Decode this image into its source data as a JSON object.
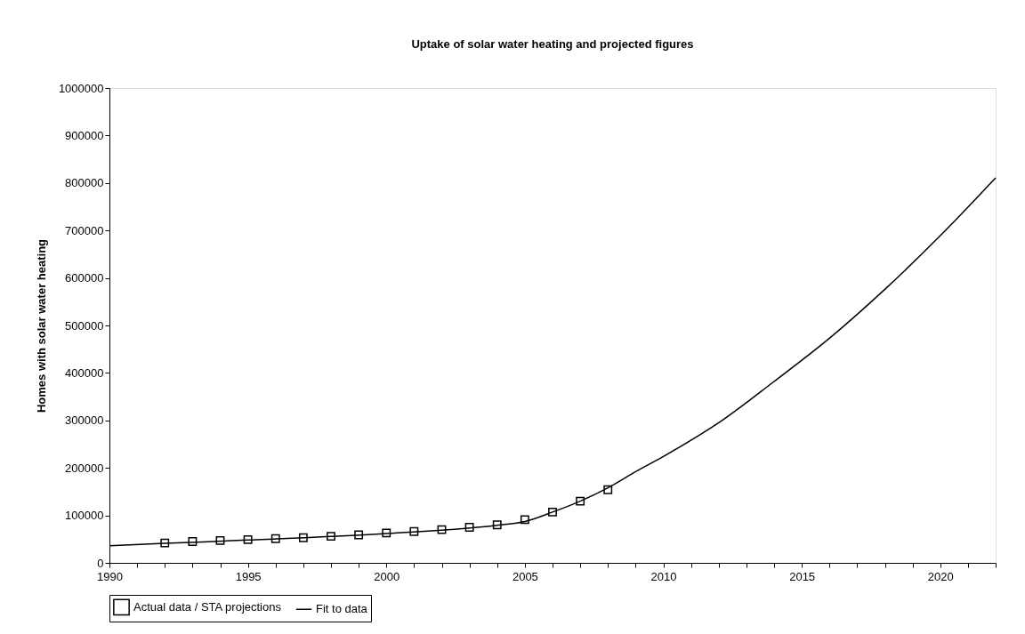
{
  "chart_data": {
    "type": "line",
    "title": "Uptake of solar water heating and projected figures",
    "ylabel": "Homes with solar water heating",
    "xlim": [
      1990,
      2022
    ],
    "ylim": [
      0,
      1000000
    ],
    "xticks": [
      1990,
      {
        "value": 1991,
        "label": null
      },
      {
        "value": 1992,
        "label": null
      },
      {
        "value": 1993,
        "label": null
      },
      {
        "value": 1994,
        "label": null
      },
      1995,
      {
        "value": 1996,
        "label": null
      },
      {
        "value": 1997,
        "label": null
      },
      {
        "value": 1998,
        "label": null
      },
      {
        "value": 1999,
        "label": null
      },
      2000,
      {
        "value": 2001,
        "label": null
      },
      {
        "value": 2002,
        "label": null
      },
      {
        "value": 2003,
        "label": null
      },
      {
        "value": 2004,
        "label": null
      },
      2005,
      {
        "value": 2006,
        "label": null
      },
      {
        "value": 2007,
        "label": null
      },
      {
        "value": 2008,
        "label": null
      },
      {
        "value": 2009,
        "label": null
      },
      2010,
      {
        "value": 2011,
        "label": null
      },
      {
        "value": 2012,
        "label": null
      },
      {
        "value": 2013,
        "label": null
      },
      {
        "value": 2014,
        "label": null
      },
      2015,
      {
        "value": 2016,
        "label": null
      },
      {
        "value": 2017,
        "label": null
      },
      {
        "value": 2018,
        "label": null
      },
      {
        "value": 2019,
        "label": null
      },
      2020,
      {
        "value": 2021,
        "label": null
      },
      {
        "value": 2022,
        "label": null
      }
    ],
    "yticks": [
      0,
      100000,
      200000,
      300000,
      400000,
      500000,
      600000,
      700000,
      800000,
      900000,
      1000000
    ],
    "grid": false,
    "legend": "bottom",
    "series": [
      {
        "name": "Actual data / STA projections",
        "type": "scatter",
        "marker": "square",
        "color": "#000000",
        "x": [
          1992,
          1993,
          1994,
          1995,
          1996,
          1997,
          1998,
          1999,
          2000,
          2001,
          2002,
          2003,
          2004,
          2005,
          2006,
          2007,
          2008
        ],
        "values": [
          42000,
          45000,
          47000,
          49000,
          51000,
          53000,
          56000,
          59000,
          63000,
          66000,
          70000,
          75000,
          80000,
          91000,
          107000,
          130000,
          154000
        ]
      },
      {
        "name": "Fit to data",
        "type": "line",
        "marker": "none",
        "line_style": "solid",
        "color": "#000000",
        "x": [
          1990,
          1992,
          1995,
          2000,
          2004,
          2005,
          2006,
          2007,
          2008,
          2009,
          2010,
          2012,
          2014,
          2016,
          2018,
          2020,
          2022
        ],
        "values": [
          36000,
          41000,
          48000,
          62000,
          79000,
          87000,
          107000,
          130000,
          158000,
          192000,
          224000,
          295000,
          382000,
          473000,
          576000,
          689000,
          811000
        ]
      }
    ]
  }
}
